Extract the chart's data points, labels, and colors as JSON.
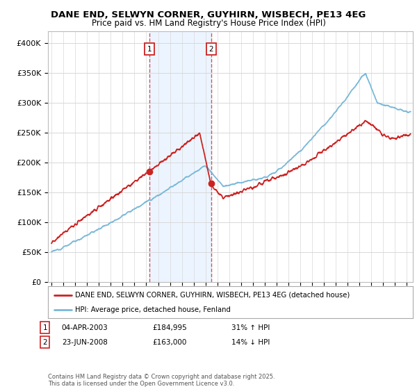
{
  "title_line1": "DANE END, SELWYN CORNER, GUYHIRN, WISBECH, PE13 4EG",
  "title_line2": "Price paid vs. HM Land Registry's House Price Index (HPI)",
  "ylim": [
    0,
    420000
  ],
  "yticks": [
    0,
    50000,
    100000,
    150000,
    200000,
    250000,
    300000,
    350000,
    400000
  ],
  "ytick_labels": [
    "£0",
    "£50K",
    "£100K",
    "£150K",
    "£200K",
    "£250K",
    "£300K",
    "£350K",
    "£400K"
  ],
  "sale1_date": 2003.27,
  "sale1_price": 184995,
  "sale2_date": 2008.47,
  "sale2_price": 163000,
  "hpi_color": "#7ab8d9",
  "price_color": "#cc2222",
  "shaded_color": "#ddeeff",
  "background_color": "#ffffff",
  "grid_color": "#d8d8d8",
  "legend_label_price": "DANE END, SELWYN CORNER, GUYHIRN, WISBECH, PE13 4EG (detached house)",
  "legend_label_hpi": "HPI: Average price, detached house, Fenland",
  "table_row1": [
    "1",
    "04-APR-2003",
    "£184,995",
    "31% ↑ HPI"
  ],
  "table_row2": [
    "2",
    "23-JUN-2008",
    "£163,000",
    "14% ↓ HPI"
  ],
  "footer": "Contains HM Land Registry data © Crown copyright and database right 2025.\nThis data is licensed under the Open Government Licence v3.0."
}
